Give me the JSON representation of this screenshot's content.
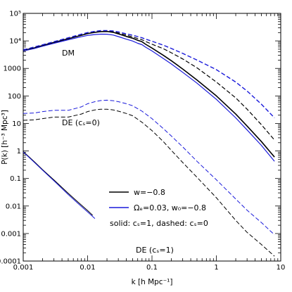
{
  "chart_data": {
    "type": "line",
    "xlabel": "k [h Mpc⁻¹]",
    "ylabel": "P(k) [h⁻³ Mpc³]",
    "xscale": "log",
    "yscale": "log",
    "xlim": [
      0.001,
      10
    ],
    "ylim": [
      0.0001,
      100000
    ],
    "x_ticks": [
      0.001,
      0.01,
      0.1,
      1,
      10
    ],
    "x_tick_labels": [
      "0.001",
      "0.01",
      "0.1",
      "1",
      "10"
    ],
    "y_ticks": [
      0.0001,
      0.001,
      0.01,
      0.1,
      1,
      10,
      100,
      1000,
      10000,
      100000
    ],
    "y_tick_labels": [
      "0.0001",
      "0.001",
      "0.01",
      "0.1",
      "1",
      "10",
      "100",
      "1000",
      "10⁴",
      "10⁵"
    ],
    "grid": false,
    "legend_position": "bottom-right",
    "legend": [
      {
        "label": "w=−0.8",
        "color": "#000000"
      },
      {
        "label": "Ωₑ=0.03, w₀=−0.8",
        "color": "#1a1adb"
      },
      {
        "label": "solid: cₛ=1, dashed: cₛ=0",
        "color": null
      }
    ],
    "annotations": [
      {
        "text": "DM",
        "x": 0.0022,
        "y": 1900
      },
      {
        "text": "DE (cₛ=0)",
        "x": 0.0025,
        "y": 8
      },
      {
        "text": "DE (cₛ=1)",
        "x": 0.022,
        "y": 0.0002
      }
    ],
    "series": [
      {
        "key": "dm_black_solid",
        "color": "#000000",
        "style": "solid",
        "width": 1.6,
        "x": [
          0.001,
          0.0015,
          0.002,
          0.003,
          0.005,
          0.008,
          0.01,
          0.013,
          0.016,
          0.02,
          0.025,
          0.03,
          0.04,
          0.05,
          0.06,
          0.07,
          0.08,
          0.1,
          0.15,
          0.2,
          0.3,
          0.5,
          1,
          2,
          3,
          5,
          8
        ],
        "y": [
          4500,
          5600,
          6800,
          8800,
          12000,
          16000,
          18500,
          20500,
          21800,
          22000,
          20500,
          18000,
          14500,
          12500,
          10500,
          9300,
          7500,
          5500,
          3000,
          1900,
          950,
          380,
          100,
          22,
          8,
          2.2,
          0.6
        ]
      },
      {
        "key": "dm_blue_solid",
        "color": "#1a1adb",
        "style": "solid",
        "width": 1.2,
        "x": [
          0.001,
          0.0015,
          0.002,
          0.003,
          0.005,
          0.008,
          0.01,
          0.013,
          0.016,
          0.02,
          0.025,
          0.03,
          0.04,
          0.05,
          0.06,
          0.07,
          0.08,
          0.1,
          0.15,
          0.2,
          0.3,
          0.5,
          1,
          2,
          3,
          5,
          8
        ],
        "y": [
          4300,
          5300,
          6400,
          8200,
          11000,
          14200,
          15800,
          17000,
          17600,
          17500,
          16300,
          14300,
          11500,
          9900,
          8200,
          7300,
          5900,
          4300,
          2300,
          1450,
          720,
          290,
          75,
          16,
          5.8,
          1.6,
          0.42
        ]
      },
      {
        "key": "dm_black_dashed",
        "color": "#000000",
        "style": "dashed",
        "width": 1.2,
        "x": [
          0.001,
          0.002,
          0.003,
          0.005,
          0.008,
          0.01,
          0.013,
          0.016,
          0.02,
          0.025,
          0.03,
          0.04,
          0.05,
          0.06,
          0.07,
          0.08,
          0.1,
          0.15,
          0.2,
          0.3,
          0.5,
          1,
          2,
          3,
          5,
          8
        ],
        "y": [
          4500,
          6800,
          8800,
          12000,
          16000,
          18500,
          20800,
          22200,
          22500,
          21500,
          19500,
          16200,
          14000,
          12200,
          11000,
          9500,
          7600,
          5200,
          3700,
          2200,
          1050,
          320,
          85,
          33,
          9,
          2.5
        ]
      },
      {
        "key": "dm_blue_dashed",
        "color": "#1a1adb",
        "style": "dashed",
        "width": 1.4,
        "x": [
          0.001,
          0.002,
          0.003,
          0.005,
          0.008,
          0.01,
          0.013,
          0.016,
          0.02,
          0.025,
          0.03,
          0.04,
          0.05,
          0.06,
          0.07,
          0.08,
          0.1,
          0.15,
          0.2,
          0.3,
          0.5,
          1,
          2,
          3,
          5,
          8
        ],
        "y": [
          4700,
          7200,
          9400,
          13000,
          17500,
          20000,
          22300,
          23600,
          23800,
          23000,
          21300,
          18000,
          16000,
          14300,
          13000,
          11500,
          9700,
          7000,
          5300,
          3500,
          2000,
          900,
          320,
          150,
          50,
          16
        ]
      },
      {
        "key": "de_black_dashed",
        "color": "#000000",
        "style": "dashed",
        "width": 1.0,
        "x": [
          0.001,
          0.0015,
          0.002,
          0.003,
          0.005,
          0.008,
          0.01,
          0.013,
          0.016,
          0.02,
          0.025,
          0.03,
          0.04,
          0.05,
          0.07,
          0.1,
          0.15,
          0.2,
          0.3,
          0.5,
          1,
          2,
          3,
          5,
          8
        ],
        "y": [
          13,
          13.5,
          15,
          17,
          17,
          22,
          27,
          31,
          33,
          33,
          31,
          28,
          23,
          19,
          11,
          5.5,
          2.2,
          1.05,
          0.38,
          0.11,
          0.02,
          0.003,
          0.0011,
          0.0004,
          0.00015
        ]
      },
      {
        "key": "de_blue_dashed",
        "color": "#1a1adb",
        "style": "dashed",
        "width": 1.0,
        "x": [
          0.001,
          0.0015,
          0.002,
          0.003,
          0.005,
          0.008,
          0.01,
          0.013,
          0.016,
          0.02,
          0.025,
          0.03,
          0.04,
          0.05,
          0.07,
          0.1,
          0.15,
          0.2,
          0.3,
          0.5,
          1,
          2,
          3,
          5,
          8
        ],
        "y": [
          23,
          24,
          27,
          30,
          30,
          40,
          52,
          62,
          68,
          70,
          67,
          62,
          52,
          44,
          28,
          15,
          6.5,
          3.5,
          1.4,
          0.42,
          0.09,
          0.018,
          0.007,
          0.0025,
          0.0009
        ]
      },
      {
        "key": "de_black_solid",
        "color": "#000000",
        "style": "solid",
        "width": 1.0,
        "x": [
          0.001,
          0.0015,
          0.002,
          0.003,
          0.005,
          0.007,
          0.01,
          0.012
        ],
        "y": [
          0.95,
          0.4,
          0.21,
          0.088,
          0.029,
          0.0143,
          0.0068,
          0.0046
        ]
      },
      {
        "key": "de_blue_solid",
        "color": "#1a1adb",
        "style": "solid",
        "width": 1.0,
        "x": [
          0.001,
          0.0015,
          0.002,
          0.003,
          0.005,
          0.007,
          0.01,
          0.013
        ],
        "y": [
          0.92,
          0.38,
          0.2,
          0.082,
          0.026,
          0.0128,
          0.0061,
          0.0035
        ]
      }
    ]
  }
}
